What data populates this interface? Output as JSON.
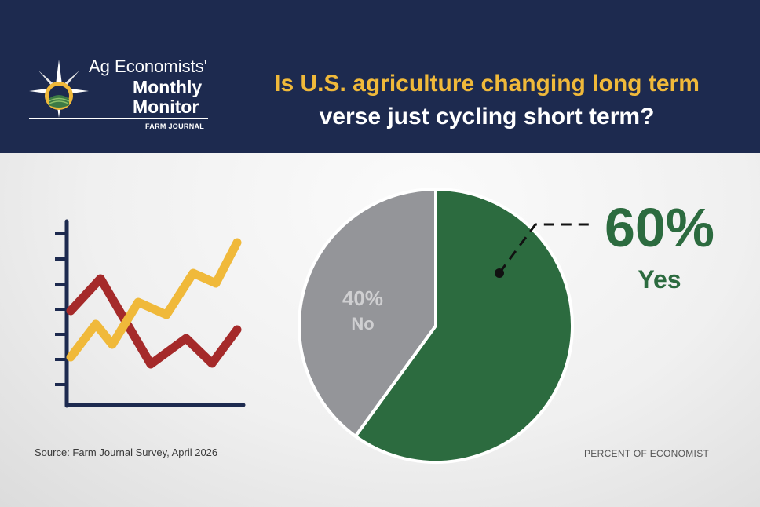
{
  "header": {
    "logo": {
      "line1": "Ag Economists'",
      "line2": "Monthly",
      "line3": "Monitor",
      "brand": "FARM JOURNAL"
    },
    "title_line1": "Is U.S. agriculture changing long term",
    "title_line2": "verse just cycling short term?"
  },
  "chart_data": {
    "type": "pie",
    "title": "Is U.S. agriculture changing long term verse just cycling short term?",
    "slices": [
      {
        "label": "Yes",
        "value": 60,
        "display": "60%",
        "color": "#2c6b3f"
      },
      {
        "label": "No",
        "value": 40,
        "display": "40%",
        "color": "#949599"
      }
    ],
    "unit": "%",
    "caption": "PERCENT OF ECONOMIST"
  },
  "footer": {
    "source": "Source: Farm Journal Survey, April 2026"
  },
  "colors": {
    "navy": "#1d2a4f",
    "gold": "#f0b93a",
    "green": "#2c6b3f",
    "gray": "#949599",
    "red": "#a52a2a"
  },
  "decorative_icons": [
    "compass-sun-logo-icon",
    "line-chart-illustration-icon"
  ]
}
